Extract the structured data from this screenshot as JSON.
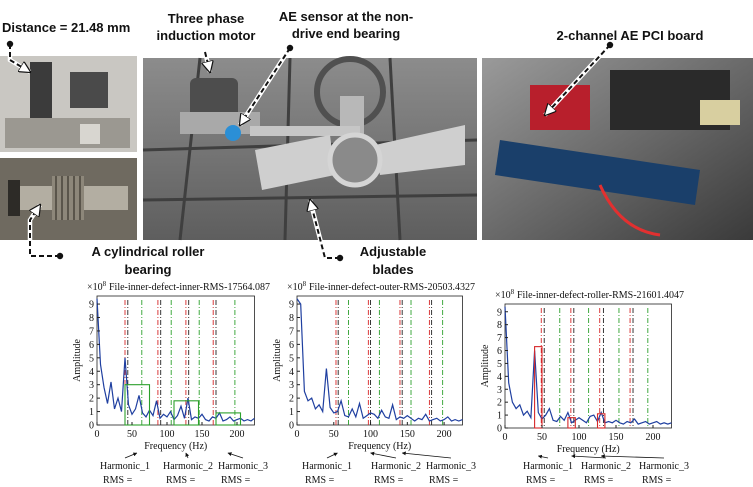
{
  "photo_labels": {
    "distance": "Distance = 21.48 mm",
    "motor": [
      "Three phase",
      "induction motor"
    ],
    "sensor": [
      "AE sensor at the non-",
      "drive end bearing"
    ],
    "board": "2-channel AE PCI board",
    "bearing": [
      "A cylindrical roller",
      "bearing"
    ],
    "blades": [
      "Adjustable",
      "blades"
    ]
  },
  "chart_data": [
    {
      "type": "line",
      "title": "File-inner-defect-inner-RMS-17564.087",
      "y_multiplier": {
        "base": "×10",
        "exponent": 8
      },
      "xlabel": "Frequency (Hz)",
      "ylabel": "Amplitude",
      "xlim": [
        0,
        225
      ],
      "ylim": [
        0,
        9.6
      ],
      "xticks": [
        0,
        50,
        100,
        150,
        200
      ],
      "yticks": [
        0,
        1,
        2,
        3,
        4,
        5,
        6,
        7,
        8,
        9
      ],
      "x": [
        0,
        5,
        10,
        15,
        20,
        25,
        30,
        35,
        40,
        45,
        50,
        55,
        60,
        65,
        70,
        75,
        80,
        85,
        90,
        95,
        100,
        105,
        110,
        115,
        120,
        125,
        130,
        135,
        140,
        145,
        150,
        155,
        160,
        165,
        170,
        175,
        180,
        185,
        190,
        195,
        200,
        205,
        210,
        215,
        220,
        225
      ],
      "series": [
        {
          "color": "#1f3fa0",
          "values": [
            9.4,
            4.5,
            2.8,
            1.6,
            3.2,
            1.2,
            2.0,
            1.0,
            5.0,
            1.5,
            0.8,
            1.2,
            2.2,
            0.9,
            0.6,
            1.1,
            0.7,
            1.8,
            0.5,
            0.8,
            0.6,
            1.0,
            0.4,
            0.7,
            1.4,
            0.5,
            2.0,
            0.4,
            0.6,
            0.5,
            0.8,
            0.4,
            0.3,
            0.6,
            0.5,
            0.9,
            0.3,
            0.4,
            0.6,
            0.3,
            0.4,
            0.5,
            0.3,
            0.4,
            0.3,
            0.5
          ]
        }
      ],
      "markers": [
        {
          "x": 40,
          "color": "#d62728"
        },
        {
          "x": 44,
          "color": "#222222"
        },
        {
          "x": 64,
          "color": "#2ca02c"
        },
        {
          "x": 87,
          "color": "#d62728"
        },
        {
          "x": 91,
          "color": "#222222"
        },
        {
          "x": 106,
          "color": "#2ca02c"
        },
        {
          "x": 127,
          "color": "#d62728"
        },
        {
          "x": 131,
          "color": "#222222"
        },
        {
          "x": 146,
          "color": "#2ca02c"
        },
        {
          "x": 166,
          "color": "#d62728"
        },
        {
          "x": 170,
          "color": "#222222"
        },
        {
          "x": 197,
          "color": "#2ca02c"
        }
      ],
      "boxes": [
        {
          "x0": 40,
          "x1": 75,
          "height": 3,
          "color": "#2ca02c"
        },
        {
          "x0": 110,
          "x1": 145,
          "height": 1.8,
          "color": "#2ca02c"
        },
        {
          "x0": 170,
          "x1": 205,
          "height": 0.9,
          "color": "#2ca02c"
        }
      ],
      "harmonic_labels": [
        "Harmonic_1",
        "Harmonic_2",
        "Harmonic_3"
      ],
      "rms_labels": [
        "RMS =",
        "RMS =",
        "RMS ="
      ]
    },
    {
      "type": "line",
      "title": "File-inner-defect-outer-RMS-20503.4327",
      "y_multiplier": {
        "base": "×10",
        "exponent": 8
      },
      "xlabel": "Frequency (Hz)",
      "ylabel": "Amplitude",
      "xlim": [
        0,
        225
      ],
      "ylim": [
        0,
        9.6
      ],
      "xticks": [
        0,
        50,
        100,
        150,
        200
      ],
      "yticks": [
        0,
        1,
        2,
        3,
        4,
        5,
        6,
        7,
        8,
        9
      ],
      "x": [
        0,
        5,
        10,
        15,
        20,
        25,
        30,
        35,
        40,
        45,
        50,
        55,
        60,
        65,
        70,
        75,
        80,
        85,
        90,
        95,
        100,
        105,
        110,
        115,
        120,
        125,
        130,
        135,
        140,
        145,
        150,
        155,
        160,
        165,
        170,
        175,
        180,
        185,
        190,
        195,
        200,
        205,
        210,
        215,
        220,
        225
      ],
      "series": [
        {
          "color": "#1f3fa0",
          "values": [
            9.4,
            9.0,
            2.5,
            1.8,
            2.0,
            1.2,
            1.5,
            1.0,
            4.2,
            1.3,
            0.9,
            1.0,
            1.8,
            0.7,
            0.6,
            1.2,
            0.6,
            1.6,
            0.5,
            0.7,
            0.9,
            0.8,
            0.5,
            1.1,
            0.6,
            0.5,
            1.5,
            0.4,
            0.6,
            0.5,
            0.7,
            0.5,
            0.3,
            0.5,
            0.4,
            0.8,
            0.3,
            0.4,
            0.5,
            0.3,
            0.4,
            0.6,
            0.3,
            0.4,
            0.3,
            0.4
          ]
        }
      ],
      "markers": [
        {
          "x": 53,
          "color": "#d62728"
        },
        {
          "x": 56,
          "color": "#222222"
        },
        {
          "x": 70,
          "color": "#2ca02c"
        },
        {
          "x": 97,
          "color": "#d62728"
        },
        {
          "x": 100,
          "color": "#222222"
        },
        {
          "x": 112,
          "color": "#2ca02c"
        },
        {
          "x": 140,
          "color": "#d62728"
        },
        {
          "x": 143,
          "color": "#222222"
        },
        {
          "x": 155,
          "color": "#2ca02c"
        },
        {
          "x": 180,
          "color": "#d62728"
        },
        {
          "x": 183,
          "color": "#222222"
        },
        {
          "x": 198,
          "color": "#2ca02c"
        }
      ],
      "boxes": [],
      "harmonic_labels": [
        "Harmonic_1",
        "Harmonic_2",
        "Harmonic_3"
      ],
      "rms_labels": [
        "RMS =",
        "RMS =",
        "RMS ="
      ]
    },
    {
      "type": "line",
      "title": "File-inner-defect-roller-RMS-21601.4047",
      "y_multiplier": {
        "base": "×10",
        "exponent": 8
      },
      "xlabel": "Frequency (Hz)",
      "ylabel": "Amplitude",
      "xlim": [
        0,
        225
      ],
      "ylim": [
        0,
        9.6
      ],
      "xticks": [
        0,
        50,
        100,
        150,
        200
      ],
      "yticks": [
        0,
        1,
        2,
        3,
        4,
        5,
        6,
        7,
        8,
        9
      ],
      "x": [
        0,
        5,
        10,
        15,
        20,
        25,
        30,
        35,
        40,
        45,
        50,
        55,
        60,
        65,
        70,
        75,
        80,
        85,
        90,
        95,
        100,
        105,
        110,
        115,
        120,
        125,
        130,
        135,
        140,
        145,
        150,
        155,
        160,
        165,
        170,
        175,
        180,
        185,
        190,
        195,
        200,
        205,
        210,
        215,
        220,
        225
      ],
      "series": [
        {
          "color": "#1f3fa0",
          "values": [
            9.4,
            3.5,
            2.0,
            1.5,
            1.8,
            1.0,
            1.3,
            0.8,
            6.0,
            1.2,
            0.7,
            1.0,
            1.5,
            0.6,
            0.5,
            0.9,
            0.6,
            1.2,
            0.4,
            0.6,
            0.8,
            0.6,
            0.4,
            0.9,
            1.0,
            0.5,
            1.2,
            0.4,
            0.5,
            0.4,
            0.6,
            0.4,
            0.3,
            0.5,
            0.4,
            0.7,
            0.3,
            0.4,
            0.5,
            0.3,
            0.4,
            0.5,
            0.3,
            0.4,
            0.3,
            0.4
          ]
        }
      ],
      "markers": [
        {
          "x": 49,
          "color": "#d62728"
        },
        {
          "x": 53,
          "color": "#222222"
        },
        {
          "x": 74,
          "color": "#2ca02c"
        },
        {
          "x": 89,
          "color": "#d62728"
        },
        {
          "x": 93,
          "color": "#222222"
        },
        {
          "x": 113,
          "color": "#2ca02c"
        },
        {
          "x": 128,
          "color": "#d62728"
        },
        {
          "x": 133,
          "color": "#222222"
        },
        {
          "x": 154,
          "color": "#2ca02c"
        },
        {
          "x": 169,
          "color": "#d62728"
        },
        {
          "x": 173,
          "color": "#222222"
        },
        {
          "x": 193,
          "color": "#2ca02c"
        }
      ],
      "boxes": [
        {
          "x0": 40,
          "x1": 50,
          "height": 6.3,
          "color": "#d62728"
        },
        {
          "x0": 85,
          "x1": 95,
          "height": 0.8,
          "color": "#d62728"
        },
        {
          "x0": 125,
          "x1": 135,
          "height": 1.1,
          "color": "#d62728"
        }
      ],
      "harmonic_labels": [
        "Harmonic_1",
        "Harmonic_2",
        "Harmonic_3"
      ],
      "rms_labels": [
        "RMS =",
        "RMS =",
        "RMS ="
      ]
    }
  ]
}
